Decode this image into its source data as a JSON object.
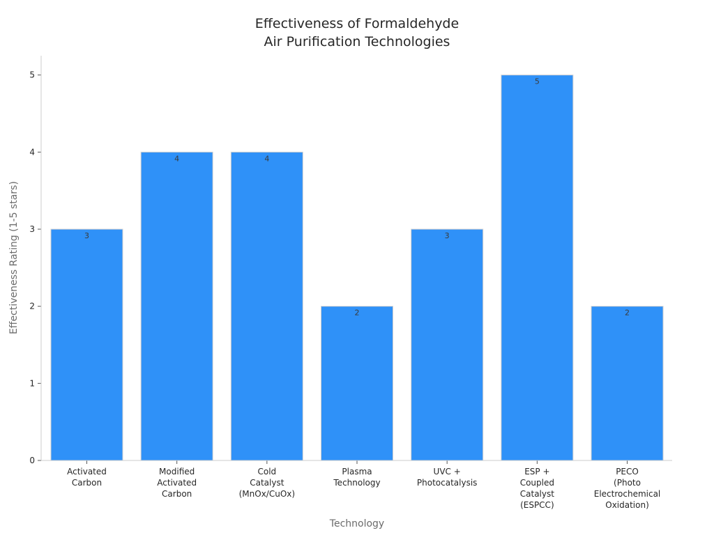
{
  "chart_data": {
    "type": "bar",
    "title": [
      "Effectiveness of Formaldehyde",
      "Air Purification Technologies"
    ],
    "xlabel": "Technology",
    "ylabel": "Effectiveness Rating (1-5 stars)",
    "categories": [
      [
        "Activated",
        "Carbon"
      ],
      [
        "Modified",
        "Activated",
        "Carbon"
      ],
      [
        "Cold",
        "Catalyst",
        "(MnOx/CuOx)"
      ],
      [
        "Plasma",
        "Technology"
      ],
      [
        "UVC +",
        "Photocatalysis"
      ],
      [
        "ESP +",
        "Coupled",
        "Catalyst",
        "(ESPCC)"
      ],
      [
        "PECO",
        "(Photo",
        "Electrochemical",
        "Oxidation)"
      ]
    ],
    "values": [
      3,
      4,
      4,
      2,
      3,
      5,
      2
    ],
    "data_labels": [
      "3",
      "4",
      "4",
      "2",
      "3",
      "5",
      "2"
    ],
    "ylim": [
      0,
      5.25
    ],
    "yticks": [
      0,
      1,
      2,
      3,
      4,
      5
    ],
    "ytick_labels": [
      "0",
      "1",
      "2",
      "3",
      "4",
      "5"
    ],
    "grid": false,
    "bar_color": "#2f91f8",
    "bar_edge_color": "#d0d0d0"
  }
}
